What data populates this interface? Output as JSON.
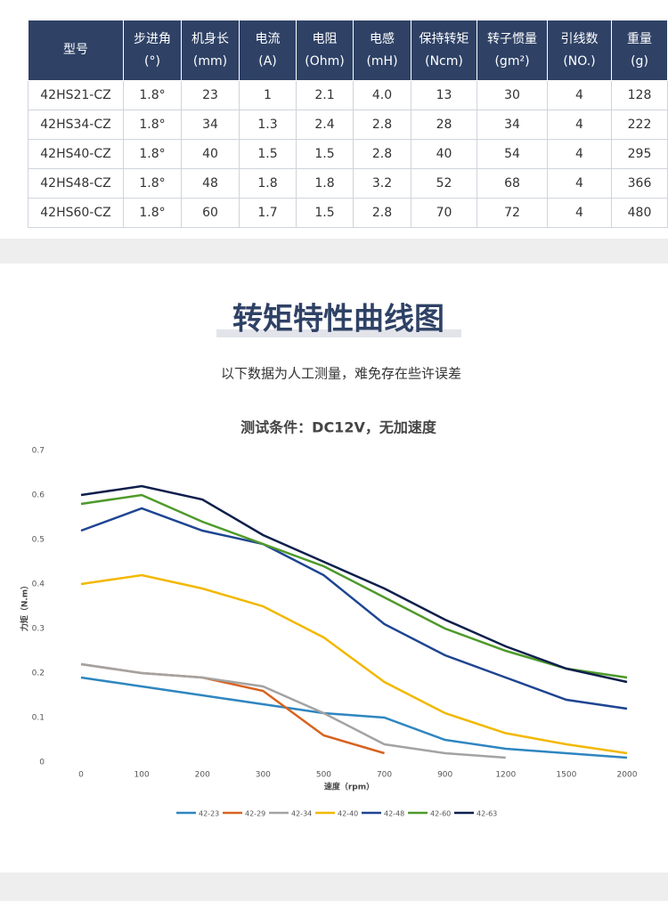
{
  "table": {
    "header": [
      [
        "型号"
      ],
      [
        "步进角",
        "(°)"
      ],
      [
        "机身长",
        "(mm)"
      ],
      [
        "电流",
        "(A)"
      ],
      [
        "电阻",
        "(Ohm)"
      ],
      [
        "电感",
        "(mH)"
      ],
      [
        "保持转矩",
        "(Ncm)"
      ],
      [
        "转子惯量",
        "(gm²)"
      ],
      [
        "引线数",
        "(NO.)"
      ],
      [
        "重量",
        "(g)"
      ]
    ],
    "rows": [
      [
        "42HS21-CZ",
        "1.8°",
        "23",
        "1",
        "2.1",
        "4.0",
        "13",
        "30",
        "4",
        "128"
      ],
      [
        "42HS34-CZ",
        "1.8°",
        "34",
        "1.3",
        "2.4",
        "2.8",
        "28",
        "34",
        "4",
        "222"
      ],
      [
        "42HS40-CZ",
        "1.8°",
        "40",
        "1.5",
        "1.5",
        "2.8",
        "40",
        "54",
        "4",
        "295"
      ],
      [
        "42HS48-CZ",
        "1.8°",
        "48",
        "1.8",
        "1.8",
        "3.2",
        "52",
        "68",
        "4",
        "366"
      ],
      [
        "42HS60-CZ",
        "1.8°",
        "60",
        "1.7",
        "1.5",
        "2.8",
        "70",
        "72",
        "4",
        "480"
      ]
    ]
  },
  "section": {
    "title": "转矩特性曲线图",
    "subtitle": "以下数据为人工测量，难免存在些许误差"
  },
  "chart_data": {
    "type": "line",
    "title": "测试条件：DC12V，无加速度",
    "x_label": "速度（rpm）",
    "y_label": "力矩（N.m）",
    "categories": [
      "0",
      "100",
      "200",
      "300",
      "500",
      "700",
      "900",
      "1200",
      "1500",
      "2000"
    ],
    "ylim": [
      0,
      0.7
    ],
    "yticks": [
      0,
      0.1,
      0.2,
      0.3,
      0.4,
      0.5,
      0.6,
      0.7
    ],
    "grid": false,
    "legend": "bottom",
    "series": [
      {
        "name": "42-23",
        "color": "#2f86c0",
        "values": [
          0.19,
          0.17,
          0.15,
          0.13,
          0.11,
          0.1,
          0.05,
          0.03,
          0.02,
          0.01
        ]
      },
      {
        "name": "42-29",
        "color": "#d8621f",
        "values": [
          0.22,
          0.2,
          0.19,
          0.16,
          0.06,
          0.02,
          null,
          null,
          null,
          null
        ]
      },
      {
        "name": "42-34",
        "color": "#a3a3a3",
        "values": [
          0.22,
          0.2,
          0.19,
          0.17,
          0.11,
          0.04,
          0.02,
          0.01,
          null,
          null
        ]
      },
      {
        "name": "42-40",
        "color": "#f2b800",
        "values": [
          0.4,
          0.42,
          0.39,
          0.35,
          0.28,
          0.18,
          0.11,
          0.065,
          0.04,
          0.02
        ]
      },
      {
        "name": "42-48",
        "color": "#1e4592",
        "values": [
          0.52,
          0.57,
          0.52,
          0.49,
          0.42,
          0.31,
          0.24,
          0.19,
          0.14,
          0.12
        ]
      },
      {
        "name": "42-60",
        "color": "#4e9a2a",
        "values": [
          0.58,
          0.6,
          0.54,
          0.49,
          0.44,
          0.37,
          0.3,
          0.25,
          0.21,
          0.19
        ]
      },
      {
        "name": "42-63",
        "color": "#0e1f4b",
        "values": [
          0.6,
          0.62,
          0.59,
          0.51,
          0.45,
          0.39,
          0.32,
          0.26,
          0.21,
          0.18
        ]
      }
    ]
  }
}
